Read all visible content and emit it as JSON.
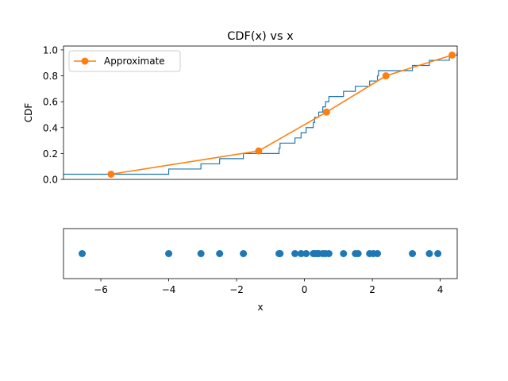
{
  "chart_data": [
    {
      "type": "line",
      "title": "CDF(x) vs x",
      "xlabel": "",
      "ylabel": "CDF",
      "xlim": [
        -7.1,
        4.5
      ],
      "ylim": [
        0.0,
        1.03
      ],
      "yticks": [
        0.0,
        0.2,
        0.4,
        0.6,
        0.8,
        1.0
      ],
      "ytick_labels": [
        "0.0",
        "0.2",
        "0.4",
        "0.6",
        "0.8",
        "1.0"
      ],
      "grid": false,
      "legend_position": "top-left",
      "series": [
        {
          "kind": "step",
          "color": "#1f77b4",
          "x": [
            -7.1,
            -4.0,
            -3.05,
            -2.5,
            -1.8,
            -0.75,
            -0.72,
            -0.28,
            -0.1,
            0.05,
            0.26,
            0.3,
            0.36,
            0.42,
            0.54,
            0.62,
            0.72,
            0.93,
            1.15,
            1.5,
            1.58,
            1.92,
            2.03,
            2.15,
            2.18,
            3.18,
            3.68,
            3.98,
            4.27,
            4.5
          ],
          "y": [
            0.04,
            0.08,
            0.12,
            0.16,
            0.2,
            0.24,
            0.28,
            0.32,
            0.36,
            0.4,
            0.44,
            0.48,
            0.48,
            0.52,
            0.56,
            0.6,
            0.64,
            0.64,
            0.68,
            0.72,
            0.72,
            0.76,
            0.76,
            0.8,
            0.84,
            0.88,
            0.92,
            0.92,
            0.96,
            0.98
          ]
        },
        {
          "name": "Approximate",
          "kind": "line-markers",
          "color": "#ff7f0e",
          "x": [
            -5.7,
            -1.35,
            0.65,
            2.4,
            4.35
          ],
          "y": [
            0.04,
            0.22,
            0.52,
            0.8,
            0.96
          ]
        }
      ]
    },
    {
      "type": "scatter",
      "title": "",
      "xlabel": "x",
      "ylabel": "",
      "xlim": [
        -7.1,
        4.5
      ],
      "xticks": [
        -6,
        -4,
        -2,
        0,
        2,
        4
      ],
      "xtick_labels": [
        "−6",
        "−4",
        "−2",
        "0",
        "2",
        "4"
      ],
      "grid": false,
      "series": [
        {
          "color": "#1f77b4",
          "x": [
            -6.55,
            -4.0,
            -3.05,
            -2.5,
            -1.8,
            -0.75,
            -0.72,
            -0.28,
            -0.1,
            0.05,
            0.26,
            0.3,
            0.36,
            0.42,
            0.54,
            0.62,
            0.72,
            1.15,
            1.5,
            1.58,
            1.92,
            2.03,
            2.15,
            3.18,
            3.68,
            3.93
          ],
          "y": [
            0,
            0,
            0,
            0,
            0,
            0,
            0,
            0,
            0,
            0,
            0,
            0,
            0,
            0,
            0,
            0,
            0,
            0,
            0,
            0,
            0,
            0,
            0,
            0,
            0,
            0
          ]
        }
      ]
    }
  ]
}
